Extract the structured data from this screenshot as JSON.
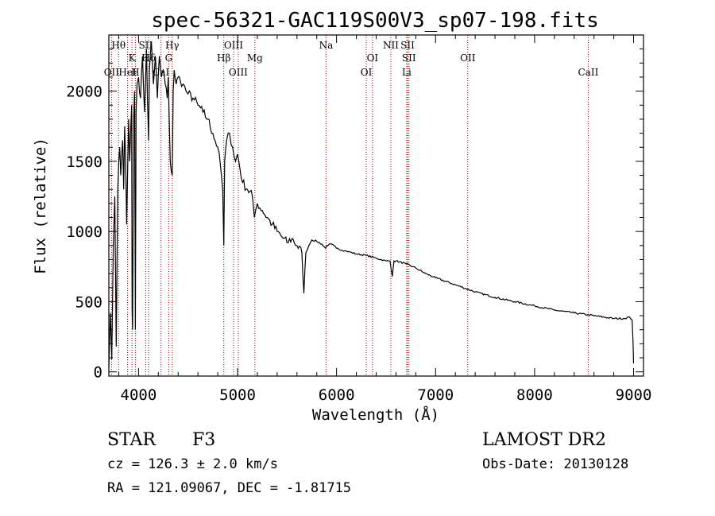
{
  "chart_data": {
    "type": "line",
    "title": "spec-56321-GAC119S00V3_sp07-198.fits",
    "xlabel": "Wavelength (Å)",
    "ylabel": "Flux (relative)",
    "xlim": [
      3700,
      9100
    ],
    "ylim": [
      -30,
      2400
    ],
    "xticks": [
      4000,
      5000,
      6000,
      7000,
      8000,
      9000
    ],
    "yticks": [
      0,
      500,
      1000,
      1500,
      2000
    ],
    "xticks_minor_step": 200,
    "yticks_minor_step": 100,
    "line_color": "#000000",
    "marker_color": "#8b0000",
    "series": [
      {
        "x": [
          3700,
          3715,
          3730,
          3745,
          3760,
          3775,
          3790,
          3800,
          3810,
          3820,
          3830,
          3840,
          3850,
          3860,
          3870,
          3880,
          3890,
          3900,
          3910,
          3920,
          3930,
          3935,
          3940,
          3950,
          3960,
          3968,
          3975,
          3985,
          4000,
          4020,
          4040,
          4060,
          4080,
          4090,
          4101,
          4110,
          4130,
          4150,
          4170,
          4190,
          4210,
          4230,
          4250,
          4270,
          4290,
          4300,
          4310,
          4320,
          4340,
          4350,
          4360,
          4380,
          4400,
          4420,
          4450,
          4480,
          4500,
          4550,
          4600,
          4650,
          4700,
          4750,
          4800,
          4830,
          4850,
          4861,
          4870,
          4890,
          4920,
          4950,
          4980,
          5000,
          5050,
          5100,
          5150,
          5170,
          5183,
          5200,
          5250,
          5300,
          5350,
          5400,
          5450,
          5500,
          5550,
          5600,
          5650,
          5670,
          5690,
          5720,
          5750,
          5800,
          5850,
          5890,
          5900,
          5950,
          6000,
          6100,
          6200,
          6300,
          6400,
          6500,
          6540,
          6563,
          6580,
          6600,
          6700,
          6800,
          6900,
          7000,
          7200,
          7400,
          7600,
          7800,
          8000,
          8200,
          8400,
          8600,
          8800,
          8900,
          8960,
          8985,
          8995,
          9000
        ],
        "y": [
          30,
          420,
          90,
          900,
          1250,
          180,
          1300,
          1500,
          1600,
          1400,
          1550,
          1650,
          1300,
          1750,
          1500,
          1050,
          1450,
          1800,
          1500,
          1700,
          1900,
          450,
          300,
          1800,
          2000,
          300,
          1850,
          2050,
          2100,
          1950,
          2250,
          1850,
          2300,
          1950,
          1650,
          2150,
          2350,
          2050,
          2250,
          1950,
          2250,
          2100,
          2150,
          2050,
          1950,
          2100,
          1800,
          1500,
          1400,
          2000,
          2150,
          2050,
          2100,
          2080,
          2050,
          2000,
          1980,
          1950,
          1900,
          1850,
          1800,
          1700,
          1600,
          1450,
          1300,
          900,
          1500,
          1650,
          1700,
          1600,
          1500,
          1550,
          1350,
          1300,
          1250,
          1100,
          1150,
          1200,
          1150,
          1100,
          1050,
          1000,
          960,
          920,
          950,
          900,
          850,
          560,
          850,
          900,
          940,
          930,
          910,
          880,
          900,
          910,
          880,
          860,
          840,
          830,
          810,
          790,
          790,
          680,
          790,
          790,
          770,
          740,
          700,
          670,
          620,
          570,
          530,
          500,
          470,
          440,
          420,
          400,
          380,
          380,
          390,
          370,
          200,
          60
        ]
      }
    ],
    "spectral_lines": [
      {
        "name": "Hθ",
        "wavelength": 3798,
        "row": 1
      },
      {
        "name": "OII",
        "wavelength": 3727,
        "row": 3
      },
      {
        "name": "K",
        "wavelength": 3934,
        "row": 2
      },
      {
        "name": "HeI",
        "wavelength": 3889,
        "row": 3
      },
      {
        "name": "SII",
        "wavelength": 4072,
        "row": 1
      },
      {
        "name": "H",
        "wavelength": 3968,
        "row": 3
      },
      {
        "name": "Hδ",
        "wavelength": 4102,
        "row": 2
      },
      {
        "name": "Hγ",
        "wavelength": 4340,
        "row": 1
      },
      {
        "name": "G",
        "wavelength": 4305,
        "row": 2
      },
      {
        "name": "CaI",
        "wavelength": 4227,
        "row": 3
      },
      {
        "name": "Hβ",
        "wavelength": 4861,
        "row": 2
      },
      {
        "name": "OIII",
        "wavelength": 4959,
        "row": 1
      },
      {
        "name": "OIII",
        "wavelength": 5007,
        "row": 3
      },
      {
        "name": "Mg",
        "wavelength": 5175,
        "row": 2
      },
      {
        "name": "Na",
        "wavelength": 5894,
        "row": 1
      },
      {
        "name": "OI",
        "wavelength": 6300,
        "row": 3
      },
      {
        "name": "OI",
        "wavelength": 6363,
        "row": 2
      },
      {
        "name": "NII",
        "wavelength": 6548,
        "row": 1
      },
      {
        "name": "SII",
        "wavelength": 6717,
        "row": 1
      },
      {
        "name": "SII",
        "wavelength": 6731,
        "row": 2
      },
      {
        "name": "Li",
        "wavelength": 6708,
        "row": 3
      },
      {
        "name": "OII",
        "wavelength": 7325,
        "row": 2
      },
      {
        "name": "CaII",
        "wavelength": 8542,
        "row": 3
      }
    ]
  },
  "info": {
    "class_label": "STAR",
    "subclass": "F3",
    "survey": "LAMOST DR2",
    "cz": "cz = 126.3 ± 2.0 km/s",
    "obs_date": "Obs-Date: 20130128",
    "coords": "RA = 121.09067, DEC =  -1.81715"
  }
}
